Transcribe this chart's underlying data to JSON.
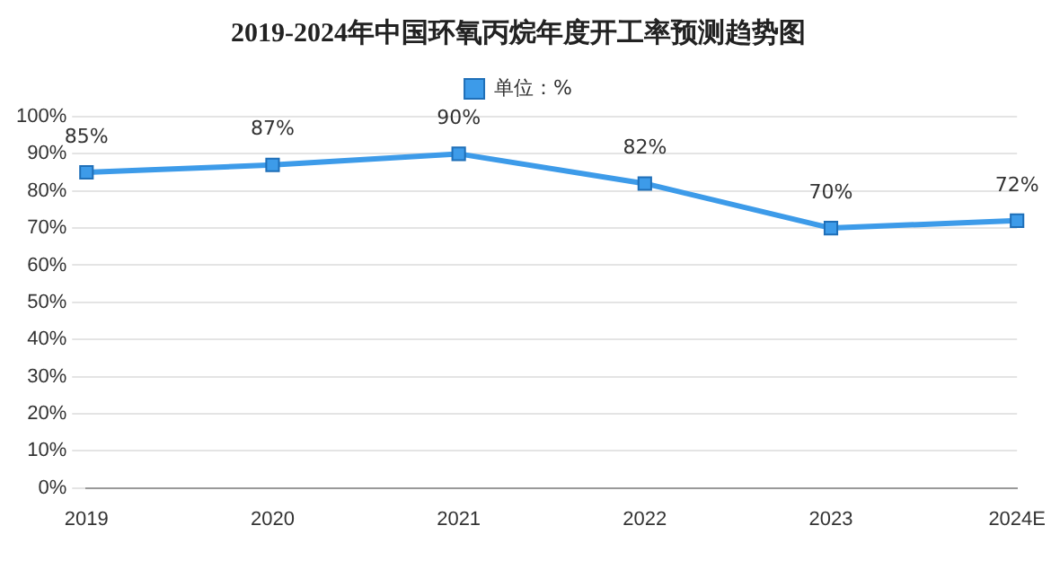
{
  "chart_data": {
    "type": "line",
    "title": "2019-2024年中国环氧丙烷年度开工率预测趋势图",
    "categories": [
      "2019",
      "2020",
      "2021",
      "2022",
      "2023",
      "2024E"
    ],
    "series": [
      {
        "name": "单位：%",
        "color": "#3d9be9",
        "values": [
          85,
          87,
          90,
          82,
          70,
          72
        ],
        "value_labels": [
          "85%",
          "87%",
          "90%",
          "82%",
          "70%",
          "72%"
        ]
      }
    ],
    "ylim": [
      0,
      100
    ],
    "yticks": [
      {
        "value": 0,
        "label": "0%"
      },
      {
        "value": 10,
        "label": "10%"
      },
      {
        "value": 20,
        "label": "20%"
      },
      {
        "value": 30,
        "label": "30%"
      },
      {
        "value": 40,
        "label": "40%"
      },
      {
        "value": 50,
        "label": "50%"
      },
      {
        "value": 60,
        "label": "60%"
      },
      {
        "value": 70,
        "label": "70%"
      },
      {
        "value": 80,
        "label": "80%"
      },
      {
        "value": 90,
        "label": "90%"
      },
      {
        "value": 100,
        "label": "100%"
      }
    ],
    "grid": "y",
    "legend": "top",
    "marker": "square",
    "line_style": "solid"
  }
}
